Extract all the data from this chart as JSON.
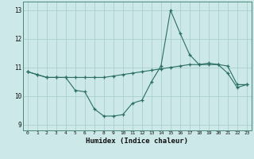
{
  "line1_x": [
    0,
    1,
    2,
    3,
    4,
    5,
    6,
    7,
    8,
    9,
    10,
    11,
    12,
    13,
    14,
    15,
    16,
    17,
    18,
    19,
    20,
    21,
    22,
    23
  ],
  "line1_y": [
    10.85,
    10.75,
    10.65,
    10.65,
    10.65,
    10.2,
    10.15,
    9.55,
    9.3,
    9.3,
    9.35,
    9.75,
    9.85,
    10.5,
    11.05,
    13.0,
    12.2,
    11.45,
    11.1,
    11.15,
    11.1,
    10.8,
    10.3,
    10.4
  ],
  "line2_x": [
    0,
    1,
    2,
    3,
    4,
    5,
    6,
    7,
    8,
    9,
    10,
    11,
    12,
    13,
    14,
    15,
    16,
    17,
    18,
    19,
    20,
    21,
    22,
    23
  ],
  "line2_y": [
    10.85,
    10.75,
    10.65,
    10.65,
    10.65,
    10.65,
    10.65,
    10.65,
    10.65,
    10.7,
    10.75,
    10.8,
    10.85,
    10.9,
    10.95,
    11.0,
    11.05,
    11.1,
    11.1,
    11.1,
    11.1,
    11.05,
    10.4,
    10.4
  ],
  "line_color": "#2a6e62",
  "bg_color": "#cce8e8",
  "grid_color": "#aacece",
  "xlabel": "Humidex (Indice chaleur)",
  "xlim": [
    -0.5,
    23.5
  ],
  "ylim": [
    8.8,
    13.3
  ],
  "yticks": [
    9,
    10,
    11,
    12,
    13
  ],
  "xticks": [
    0,
    1,
    2,
    3,
    4,
    5,
    6,
    7,
    8,
    9,
    10,
    11,
    12,
    13,
    14,
    15,
    16,
    17,
    18,
    19,
    20,
    21,
    22,
    23
  ]
}
